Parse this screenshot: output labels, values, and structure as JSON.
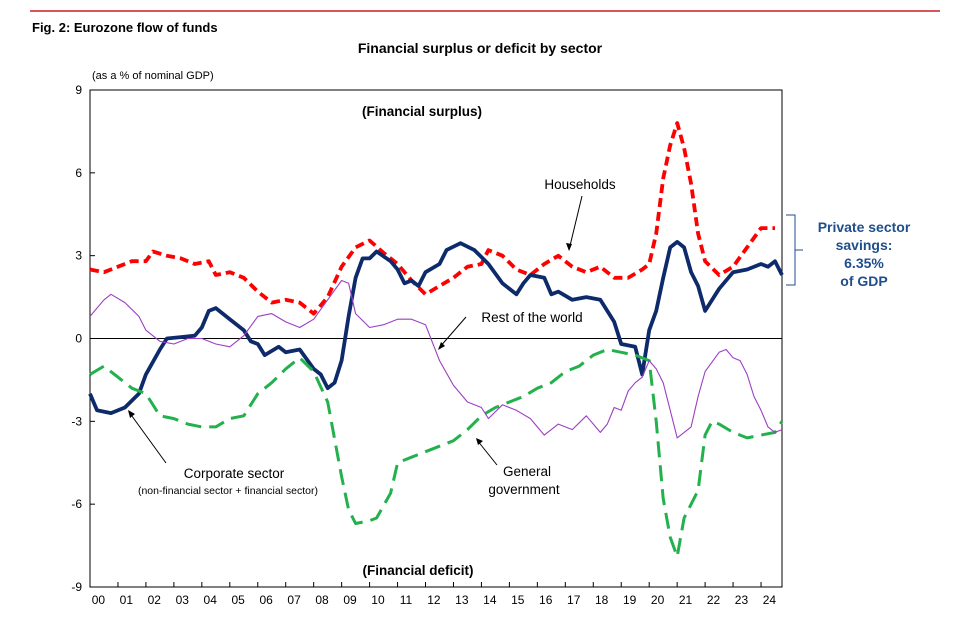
{
  "figure_label": "Fig. 2: Eurozone flow of funds",
  "chart_data": {
    "type": "line",
    "title": "Financial surplus or deficit by sector",
    "ylabel": "(as a % of nominal GDP)",
    "xlabel": "",
    "ylim": [
      -9,
      9
    ],
    "yticks": [
      9,
      6,
      3,
      0,
      -3,
      -6,
      -9
    ],
    "xlim": [
      2000,
      2024.75
    ],
    "xtick_labels": [
      "00",
      "01",
      "02",
      "03",
      "04",
      "05",
      "06",
      "07",
      "08",
      "09",
      "10",
      "11",
      "12",
      "13",
      "14",
      "15",
      "16",
      "17",
      "18",
      "19",
      "20",
      "21",
      "22",
      "23",
      "24"
    ],
    "grid": false,
    "legend": "none",
    "series": [
      {
        "name": "Households",
        "color": "#ff0000",
        "style": "dashed-thick",
        "points": [
          [
            2000.0,
            2.5
          ],
          [
            2000.5,
            2.4
          ],
          [
            2001.0,
            2.6
          ],
          [
            2001.5,
            2.8
          ],
          [
            2002.0,
            2.8
          ],
          [
            2002.25,
            3.15
          ],
          [
            2002.75,
            3.0
          ],
          [
            2003.25,
            2.9
          ],
          [
            2003.75,
            2.7
          ],
          [
            2004.25,
            2.8
          ],
          [
            2004.5,
            2.3
          ],
          [
            2005.0,
            2.4
          ],
          [
            2005.5,
            2.2
          ],
          [
            2006.0,
            1.7
          ],
          [
            2006.5,
            1.3
          ],
          [
            2007.0,
            1.4
          ],
          [
            2007.5,
            1.3
          ],
          [
            2008.0,
            0.9
          ],
          [
            2008.5,
            1.5
          ],
          [
            2009.0,
            2.6
          ],
          [
            2009.5,
            3.3
          ],
          [
            2010.0,
            3.55
          ],
          [
            2010.5,
            3.1
          ],
          [
            2011.0,
            2.7
          ],
          [
            2011.5,
            2.1
          ],
          [
            2012.0,
            1.6
          ],
          [
            2012.5,
            1.9
          ],
          [
            2013.0,
            2.2
          ],
          [
            2013.5,
            2.6
          ],
          [
            2014.0,
            2.7
          ],
          [
            2014.25,
            3.2
          ],
          [
            2014.75,
            3.0
          ],
          [
            2015.25,
            2.5
          ],
          [
            2015.75,
            2.3
          ],
          [
            2016.25,
            2.7
          ],
          [
            2016.75,
            3.0
          ],
          [
            2017.25,
            2.6
          ],
          [
            2017.75,
            2.4
          ],
          [
            2018.25,
            2.6
          ],
          [
            2018.75,
            2.2
          ],
          [
            2019.25,
            2.2
          ],
          [
            2019.75,
            2.5
          ],
          [
            2020.0,
            2.7
          ],
          [
            2020.25,
            3.8
          ],
          [
            2020.5,
            5.8
          ],
          [
            2020.75,
            7.0
          ],
          [
            2021.0,
            7.8
          ],
          [
            2021.25,
            6.9
          ],
          [
            2021.5,
            5.6
          ],
          [
            2021.75,
            3.8
          ],
          [
            2022.0,
            2.8
          ],
          [
            2022.5,
            2.3
          ],
          [
            2023.0,
            2.6
          ],
          [
            2023.5,
            3.3
          ],
          [
            2024.0,
            4.0
          ],
          [
            2024.5,
            4.0
          ]
        ]
      },
      {
        "name": "Corporate sector",
        "color": "#0d2a6b",
        "style": "solid-thick",
        "points": [
          [
            2000.0,
            -2.0
          ],
          [
            2000.25,
            -2.6
          ],
          [
            2000.75,
            -2.7
          ],
          [
            2001.25,
            -2.5
          ],
          [
            2001.75,
            -2.0
          ],
          [
            2002.0,
            -1.3
          ],
          [
            2002.5,
            -0.4
          ],
          [
            2002.75,
            0.0
          ],
          [
            2003.25,
            0.05
          ],
          [
            2003.75,
            0.1
          ],
          [
            2004.0,
            0.4
          ],
          [
            2004.25,
            1.0
          ],
          [
            2004.5,
            1.1
          ],
          [
            2005.0,
            0.7
          ],
          [
            2005.5,
            0.3
          ],
          [
            2005.75,
            -0.1
          ],
          [
            2006.0,
            -0.2
          ],
          [
            2006.25,
            -0.6
          ],
          [
            2006.75,
            -0.3
          ],
          [
            2007.0,
            -0.5
          ],
          [
            2007.5,
            -0.4
          ],
          [
            2008.0,
            -1.1
          ],
          [
            2008.25,
            -1.3
          ],
          [
            2008.5,
            -1.8
          ],
          [
            2008.75,
            -1.6
          ],
          [
            2009.0,
            -0.8
          ],
          [
            2009.25,
            0.8
          ],
          [
            2009.5,
            2.2
          ],
          [
            2009.75,
            2.9
          ],
          [
            2010.0,
            2.9
          ],
          [
            2010.25,
            3.15
          ],
          [
            2010.75,
            2.8
          ],
          [
            2011.0,
            2.5
          ],
          [
            2011.25,
            2.0
          ],
          [
            2011.5,
            2.1
          ],
          [
            2011.75,
            1.9
          ],
          [
            2012.0,
            2.4
          ],
          [
            2012.5,
            2.7
          ],
          [
            2012.75,
            3.2
          ],
          [
            2013.25,
            3.45
          ],
          [
            2013.75,
            3.2
          ],
          [
            2014.25,
            2.7
          ],
          [
            2014.75,
            2.0
          ],
          [
            2015.25,
            1.6
          ],
          [
            2015.5,
            2.0
          ],
          [
            2015.75,
            2.3
          ],
          [
            2016.25,
            2.2
          ],
          [
            2016.5,
            1.6
          ],
          [
            2016.75,
            1.7
          ],
          [
            2017.25,
            1.4
          ],
          [
            2017.75,
            1.5
          ],
          [
            2018.25,
            1.4
          ],
          [
            2018.75,
            0.6
          ],
          [
            2019.0,
            -0.2
          ],
          [
            2019.5,
            -0.3
          ],
          [
            2019.75,
            -1.3
          ],
          [
            2020.0,
            0.3
          ],
          [
            2020.25,
            1.0
          ],
          [
            2020.5,
            2.2
          ],
          [
            2020.75,
            3.3
          ],
          [
            2021.0,
            3.5
          ],
          [
            2021.25,
            3.3
          ],
          [
            2021.5,
            2.4
          ],
          [
            2021.75,
            1.9
          ],
          [
            2022.0,
            1.0
          ],
          [
            2022.5,
            1.8
          ],
          [
            2023.0,
            2.4
          ],
          [
            2023.5,
            2.5
          ],
          [
            2024.0,
            2.7
          ],
          [
            2024.25,
            2.6
          ],
          [
            2024.5,
            2.8
          ],
          [
            2024.75,
            2.3
          ]
        ]
      },
      {
        "name": "General government",
        "color": "#22b14c",
        "style": "long-dashed-thick",
        "points": [
          [
            2000.0,
            -1.3
          ],
          [
            2000.5,
            -1.0
          ],
          [
            2001.0,
            -1.4
          ],
          [
            2001.5,
            -1.8
          ],
          [
            2002.0,
            -2.0
          ],
          [
            2002.5,
            -2.8
          ],
          [
            2003.0,
            -2.9
          ],
          [
            2003.5,
            -3.1
          ],
          [
            2004.0,
            -3.2
          ],
          [
            2004.5,
            -3.2
          ],
          [
            2005.0,
            -2.9
          ],
          [
            2005.5,
            -2.8
          ],
          [
            2006.0,
            -2.0
          ],
          [
            2006.5,
            -1.6
          ],
          [
            2007.0,
            -1.1
          ],
          [
            2007.5,
            -0.7
          ],
          [
            2008.0,
            -1.2
          ],
          [
            2008.5,
            -2.3
          ],
          [
            2009.0,
            -5.0
          ],
          [
            2009.25,
            -6.2
          ],
          [
            2009.5,
            -6.7
          ],
          [
            2010.0,
            -6.6
          ],
          [
            2010.25,
            -6.5
          ],
          [
            2010.75,
            -5.6
          ],
          [
            2011.0,
            -4.5
          ],
          [
            2011.5,
            -4.3
          ],
          [
            2012.0,
            -4.1
          ],
          [
            2012.5,
            -3.9
          ],
          [
            2013.0,
            -3.7
          ],
          [
            2013.5,
            -3.3
          ],
          [
            2014.0,
            -2.8
          ],
          [
            2014.5,
            -2.5
          ],
          [
            2015.0,
            -2.3
          ],
          [
            2015.5,
            -2.1
          ],
          [
            2016.0,
            -1.8
          ],
          [
            2016.5,
            -1.6
          ],
          [
            2017.0,
            -1.2
          ],
          [
            2017.5,
            -1.0
          ],
          [
            2018.0,
            -0.6
          ],
          [
            2018.5,
            -0.4
          ],
          [
            2019.0,
            -0.5
          ],
          [
            2019.5,
            -0.6
          ],
          [
            2020.0,
            -0.8
          ],
          [
            2020.25,
            -3.0
          ],
          [
            2020.5,
            -5.8
          ],
          [
            2020.75,
            -7.2
          ],
          [
            2021.0,
            -7.9
          ],
          [
            2021.25,
            -6.5
          ],
          [
            2021.75,
            -5.5
          ],
          [
            2022.0,
            -3.5
          ],
          [
            2022.25,
            -3.0
          ],
          [
            2022.5,
            -3.1
          ],
          [
            2023.0,
            -3.4
          ],
          [
            2023.5,
            -3.6
          ],
          [
            2024.0,
            -3.5
          ],
          [
            2024.5,
            -3.4
          ],
          [
            2024.75,
            -3.0
          ]
        ]
      },
      {
        "name": "Rest of the world",
        "color": "#9b3fc4",
        "style": "solid-thin",
        "points": [
          [
            2000.0,
            0.8
          ],
          [
            2000.5,
            1.4
          ],
          [
            2000.75,
            1.6
          ],
          [
            2001.25,
            1.3
          ],
          [
            2001.75,
            0.8
          ],
          [
            2002.0,
            0.3
          ],
          [
            2002.5,
            -0.1
          ],
          [
            2003.0,
            -0.2
          ],
          [
            2003.5,
            0.0
          ],
          [
            2004.0,
            0.0
          ],
          [
            2004.5,
            -0.2
          ],
          [
            2005.0,
            -0.3
          ],
          [
            2005.5,
            0.1
          ],
          [
            2006.0,
            0.8
          ],
          [
            2006.5,
            0.9
          ],
          [
            2007.0,
            0.6
          ],
          [
            2007.5,
            0.4
          ],
          [
            2008.0,
            0.7
          ],
          [
            2008.5,
            1.4
          ],
          [
            2009.0,
            2.1
          ],
          [
            2009.25,
            2.0
          ],
          [
            2009.5,
            0.9
          ],
          [
            2010.0,
            0.4
          ],
          [
            2010.5,
            0.5
          ],
          [
            2011.0,
            0.7
          ],
          [
            2011.5,
            0.7
          ],
          [
            2012.0,
            0.5
          ],
          [
            2012.5,
            -0.8
          ],
          [
            2013.0,
            -1.7
          ],
          [
            2013.5,
            -2.3
          ],
          [
            2014.0,
            -2.5
          ],
          [
            2014.25,
            -2.9
          ],
          [
            2014.75,
            -2.4
          ],
          [
            2015.25,
            -2.6
          ],
          [
            2015.75,
            -2.9
          ],
          [
            2016.25,
            -3.5
          ],
          [
            2016.75,
            -3.1
          ],
          [
            2017.25,
            -3.3
          ],
          [
            2017.75,
            -2.8
          ],
          [
            2018.25,
            -3.4
          ],
          [
            2018.5,
            -3.1
          ],
          [
            2018.75,
            -2.5
          ],
          [
            2019.0,
            -2.6
          ],
          [
            2019.25,
            -1.9
          ],
          [
            2019.5,
            -1.6
          ],
          [
            2019.75,
            -1.4
          ],
          [
            2020.0,
            -0.8
          ],
          [
            2020.25,
            -1.1
          ],
          [
            2020.5,
            -1.6
          ],
          [
            2020.75,
            -2.6
          ],
          [
            2021.0,
            -3.6
          ],
          [
            2021.5,
            -3.2
          ],
          [
            2021.75,
            -2.1
          ],
          [
            2022.0,
            -1.2
          ],
          [
            2022.5,
            -0.5
          ],
          [
            2022.75,
            -0.4
          ],
          [
            2023.0,
            -0.7
          ],
          [
            2023.25,
            -0.8
          ],
          [
            2023.5,
            -1.3
          ],
          [
            2023.75,
            -2.1
          ],
          [
            2024.0,
            -2.6
          ],
          [
            2024.25,
            -3.2
          ],
          [
            2024.5,
            -3.4
          ],
          [
            2024.75,
            -3.3
          ]
        ]
      }
    ],
    "annotations": {
      "surplus": "(Financial surplus)",
      "deficit": "(Financial deficit)",
      "households": "Households",
      "rest_of_world": "Rest of the world",
      "corporate": "Corporate sector",
      "corporate_sub": "(non-financial sector + financial sector)",
      "government_1": "General",
      "government_2": "government",
      "private_1": "Private sector",
      "private_2": "savings:",
      "private_3": "6.35%",
      "private_4": "of GDP"
    }
  }
}
